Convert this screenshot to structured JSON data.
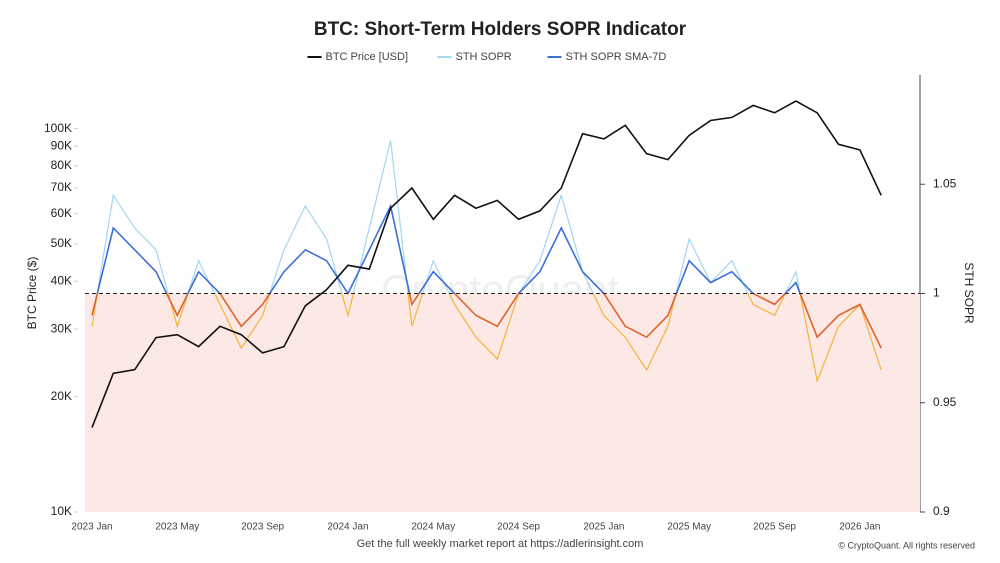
{
  "chart_data": {
    "type": "line",
    "title": "BTC: Short-Term Holders SOPR Indicator",
    "ylabel": "BTC Price ($)",
    "y2label": "STH SOPR",
    "watermark": "CryptoQuant",
    "footer": "Get the full weekly market report at https://adlerinsight.com",
    "copyright": "© CryptoQuant. All rights reserved",
    "categories": [
      "2023 Jan",
      null,
      null,
      null,
      "2023 May",
      null,
      null,
      null,
      "2023 Sep",
      null,
      null,
      null,
      "2024 Jan",
      null,
      null,
      null,
      "2024 May",
      null,
      null,
      null,
      "2024 Sep",
      null,
      null,
      null,
      "2025 Jan",
      null,
      null,
      null,
      "2025 May",
      null,
      null,
      null,
      "2025 Sep",
      null,
      null,
      null,
      "2026 Jan",
      null
    ],
    "log_y": true,
    "ylim": [
      10000,
      138000
    ],
    "yticks": [
      {
        "value": 10000,
        "label": "10K"
      },
      {
        "value": 20000,
        "label": "20K"
      },
      {
        "value": 30000,
        "label": "30K"
      },
      {
        "value": 40000,
        "label": "40K"
      },
      {
        "value": 50000,
        "label": "50K"
      },
      {
        "value": 60000,
        "label": "60K"
      },
      {
        "value": 70000,
        "label": "70K"
      },
      {
        "value": 80000,
        "label": "80K"
      },
      {
        "value": 90000,
        "label": "90K"
      },
      {
        "value": 100000,
        "label": "100K"
      }
    ],
    "y2lim": [
      0.9,
      1.1
    ],
    "y2ticks": [
      0.9,
      0.95,
      1,
      1.05
    ],
    "reference_line": 1,
    "shade_below_reference": "#fce8e4",
    "series": [
      {
        "name": "STH SOPR",
        "axis": "y2",
        "color": "#a5d6ee",
        "below_color": "#f3b43e",
        "values": [
          0.985,
          1.045,
          1.03,
          1.02,
          0.985,
          1.015,
          0.995,
          0.975,
          0.99,
          1.02,
          1.04,
          1.025,
          0.99,
          1.03,
          1.07,
          0.985,
          1.015,
          0.995,
          0.98,
          0.97,
          1.0,
          1.015,
          1.045,
          1.01,
          0.99,
          0.98,
          0.965,
          0.985,
          1.025,
          1.005,
          1.015,
          0.995,
          0.99,
          1.01,
          0.96,
          0.985,
          0.995,
          0.965
        ]
      },
      {
        "name": "STH SOPR SMA-7D",
        "axis": "y2",
        "color": "#3e6fd6",
        "below_color": "#e2622c",
        "values": [
          0.99,
          1.03,
          1.02,
          1.01,
          0.99,
          1.01,
          1.0,
          0.985,
          0.995,
          1.01,
          1.02,
          1.015,
          1.0,
          1.02,
          1.04,
          0.995,
          1.01,
          1.0,
          0.99,
          0.985,
          1.0,
          1.01,
          1.03,
          1.01,
          1.0,
          0.985,
          0.98,
          0.99,
          1.015,
          1.005,
          1.01,
          1.0,
          0.995,
          1.005,
          0.98,
          0.99,
          0.995,
          0.975
        ]
      },
      {
        "name": "BTC Price [USD]",
        "axis": "y",
        "color": "#111111",
        "values": [
          16600,
          23000,
          23500,
          28500,
          29000,
          27000,
          30500,
          29000,
          26000,
          27000,
          34500,
          38000,
          44000,
          43000,
          62000,
          70000,
          58000,
          67000,
          62000,
          65000,
          58000,
          61000,
          70000,
          97000,
          94000,
          102000,
          86000,
          83000,
          96000,
          105000,
          107000,
          115000,
          110000,
          118000,
          110000,
          91000,
          88000,
          67000
        ]
      }
    ]
  }
}
